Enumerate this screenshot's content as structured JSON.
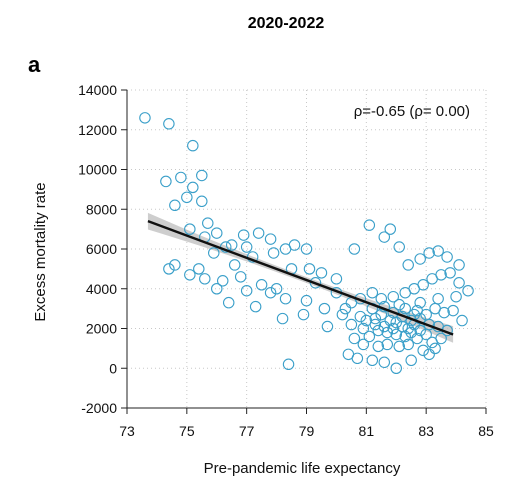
{
  "chart_data": {
    "type": "scatter",
    "title": "2020-2022",
    "panel_label": "a",
    "xlabel": "Pre-pandemic life expectancy",
    "ylabel": "Excess mortality rate",
    "xlim": [
      73,
      85
    ],
    "ylim": [
      -2000,
      14000
    ],
    "x_ticks": [
      "73",
      "75",
      "77",
      "79",
      "81",
      "83",
      "85"
    ],
    "y_ticks": [
      "14000",
      "12000",
      "10000",
      "8000",
      "6000",
      "4000",
      "2000",
      "0",
      "-2000"
    ],
    "grid": true,
    "annotation": "ρ=-0.65 (ρ= 0.00)",
    "colors": {
      "points": "#3a9fc9",
      "trend": "#111111",
      "band": "#bdbdbd"
    },
    "trend_line": {
      "x": [
        73.7,
        83.9
      ],
      "y": [
        7400,
        1700
      ]
    },
    "points": [
      [
        73.6,
        12600
      ],
      [
        74.4,
        12300
      ],
      [
        75.2,
        11200
      ],
      [
        75.5,
        9700
      ],
      [
        74.3,
        9400
      ],
      [
        75.2,
        9100
      ],
      [
        74.8,
        9600
      ],
      [
        75.0,
        8600
      ],
      [
        74.6,
        8200
      ],
      [
        75.5,
        8400
      ],
      [
        75.7,
        7300
      ],
      [
        75.1,
        7000
      ],
      [
        76.0,
        6800
      ],
      [
        75.6,
        6600
      ],
      [
        76.9,
        6700
      ],
      [
        77.4,
        6800
      ],
      [
        77.8,
        6500
      ],
      [
        76.5,
        6200
      ],
      [
        77.0,
        6100
      ],
      [
        78.6,
        6200
      ],
      [
        78.3,
        6000
      ],
      [
        79.0,
        6000
      ],
      [
        80.6,
        6000
      ],
      [
        81.1,
        7200
      ],
      [
        81.8,
        7000
      ],
      [
        81.6,
        6600
      ],
      [
        82.1,
        6100
      ],
      [
        82.4,
        5200
      ],
      [
        82.8,
        5500
      ],
      [
        83.1,
        5800
      ],
      [
        83.4,
        5900
      ],
      [
        83.7,
        5600
      ],
      [
        84.1,
        5200
      ],
      [
        74.6,
        5200
      ],
      [
        74.4,
        5000
      ],
      [
        75.4,
        5000
      ],
      [
        75.1,
        4700
      ],
      [
        75.6,
        4500
      ],
      [
        76.2,
        4400
      ],
      [
        76.8,
        4600
      ],
      [
        77.5,
        4200
      ],
      [
        78.0,
        4000
      ],
      [
        78.5,
        5000
      ],
      [
        79.1,
        5000
      ],
      [
        79.5,
        4800
      ],
      [
        80.0,
        4500
      ],
      [
        76.0,
        4000
      ],
      [
        77.0,
        3900
      ],
      [
        77.8,
        3800
      ],
      [
        78.3,
        3500
      ],
      [
        79.0,
        3400
      ],
      [
        79.6,
        3000
      ],
      [
        80.3,
        3000
      ],
      [
        80.8,
        3500
      ],
      [
        81.2,
        3800
      ],
      [
        81.5,
        3500
      ],
      [
        81.9,
        3600
      ],
      [
        82.3,
        3800
      ],
      [
        82.6,
        4000
      ],
      [
        82.9,
        4200
      ],
      [
        83.2,
        4500
      ],
      [
        83.5,
        4700
      ],
      [
        83.8,
        4800
      ],
      [
        84.1,
        4300
      ],
      [
        84.4,
        3900
      ],
      [
        84.0,
        3600
      ],
      [
        76.4,
        3300
      ],
      [
        77.3,
        3100
      ],
      [
        78.9,
        2700
      ],
      [
        78.2,
        2500
      ],
      [
        80.2,
        2700
      ],
      [
        80.5,
        2200
      ],
      [
        80.8,
        2600
      ],
      [
        81.0,
        2400
      ],
      [
        81.3,
        2200
      ],
      [
        81.6,
        2100
      ],
      [
        81.8,
        2400
      ],
      [
        82.0,
        2300
      ],
      [
        82.2,
        2100
      ],
      [
        82.4,
        2000
      ],
      [
        82.6,
        2200
      ],
      [
        82.8,
        2500
      ],
      [
        83.0,
        2700
      ],
      [
        83.3,
        3000
      ],
      [
        83.6,
        2800
      ],
      [
        83.9,
        2900
      ],
      [
        81.4,
        1900
      ],
      [
        81.7,
        1800
      ],
      [
        82.0,
        1700
      ],
      [
        82.3,
        1600
      ],
      [
        82.5,
        1800
      ],
      [
        82.7,
        1500
      ],
      [
        83.0,
        1700
      ],
      [
        83.2,
        1300
      ],
      [
        83.5,
        1500
      ],
      [
        81.1,
        1600
      ],
      [
        80.9,
        1200
      ],
      [
        81.4,
        1100
      ],
      [
        81.7,
        1200
      ],
      [
        82.1,
        1100
      ],
      [
        82.4,
        1200
      ],
      [
        82.9,
        900
      ],
      [
        83.3,
        1000
      ],
      [
        80.4,
        700
      ],
      [
        80.7,
        500
      ],
      [
        81.2,
        400
      ],
      [
        81.6,
        300
      ],
      [
        82.5,
        400
      ],
      [
        83.1,
        700
      ],
      [
        78.4,
        200
      ],
      [
        82.0,
        0
      ],
      [
        79.7,
        2100
      ],
      [
        80.6,
        1500
      ],
      [
        81.9,
        2800
      ],
      [
        82.3,
        3000
      ],
      [
        82.7,
        2900
      ],
      [
        81.5,
        2700
      ],
      [
        81.2,
        3000
      ],
      [
        82.8,
        3300
      ],
      [
        83.4,
        3500
      ],
      [
        80.0,
        3800
      ],
      [
        79.3,
        4300
      ],
      [
        76.6,
        5200
      ],
      [
        77.2,
        5600
      ],
      [
        77.9,
        5800
      ],
      [
        75.9,
        5800
      ],
      [
        76.3,
        6100
      ],
      [
        82.2,
        2600
      ],
      [
        82.5,
        2400
      ],
      [
        81.9,
        2000
      ],
      [
        82.6,
        2700
      ],
      [
        83.1,
        2200
      ],
      [
        81.3,
        2500
      ],
      [
        80.9,
        2000
      ],
      [
        82.8,
        1900
      ],
      [
        83.4,
        2100
      ],
      [
        84.2,
        2400
      ],
      [
        83.7,
        1900
      ],
      [
        82.1,
        3200
      ],
      [
        81.6,
        3100
      ],
      [
        80.5,
        3300
      ]
    ]
  }
}
